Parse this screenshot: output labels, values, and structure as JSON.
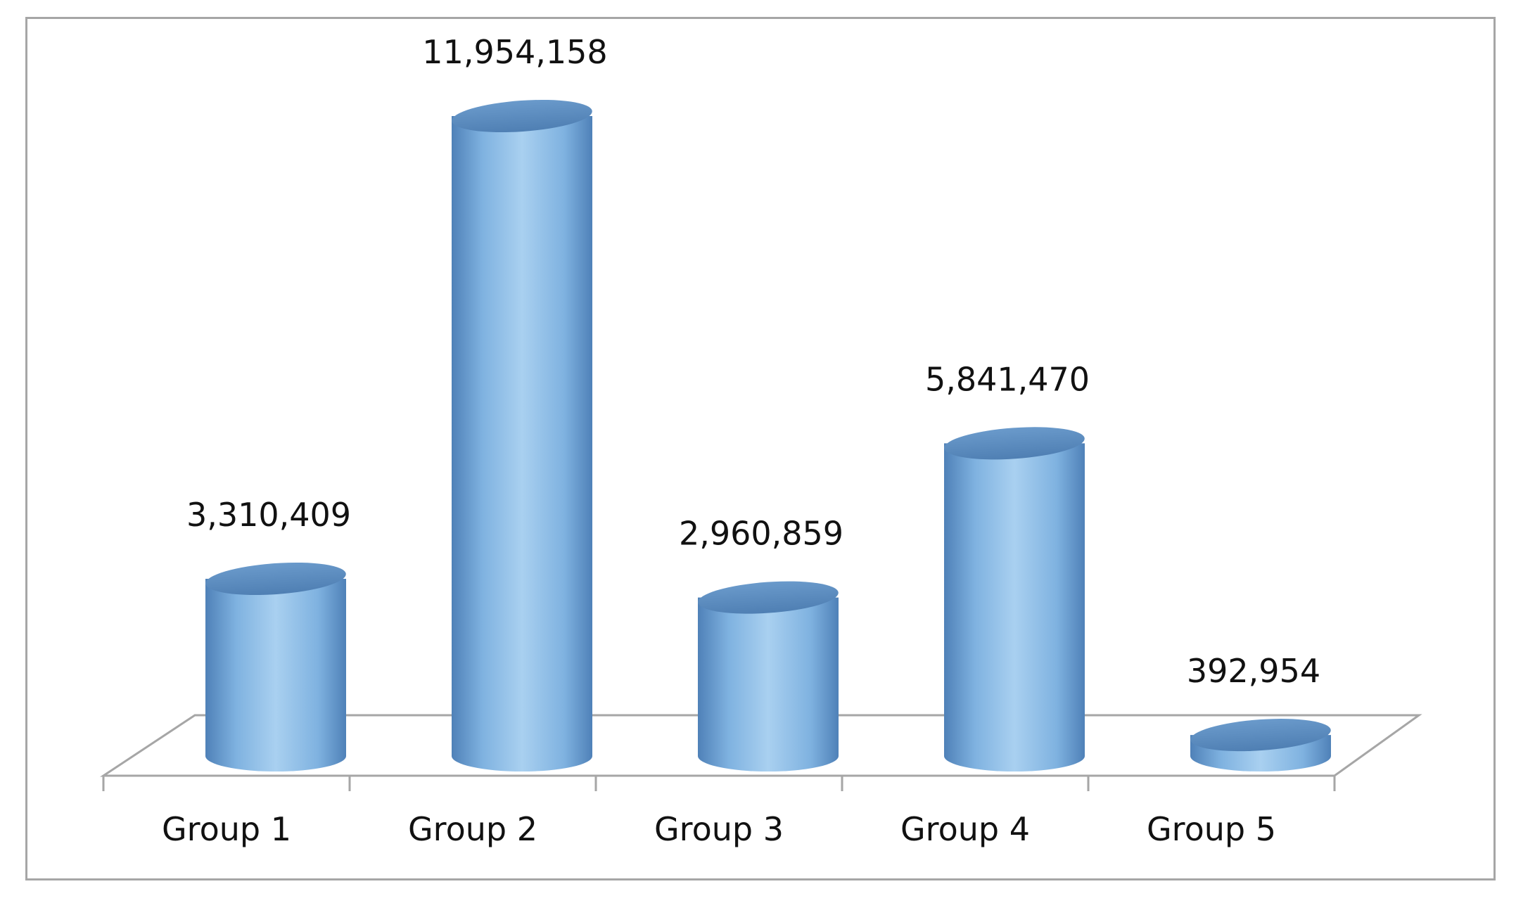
{
  "chart_data": {
    "type": "bar",
    "style": "3d-cylinder",
    "categories": [
      "Group 1",
      "Group 2",
      "Group 3",
      "Group 4",
      "Group 5"
    ],
    "values": [
      3310409,
      11954158,
      2960859,
      5841470,
      392954
    ],
    "data_labels": [
      "3,310,409",
      "11,954,158",
      "2,960,859",
      "5,841,470",
      "392,954"
    ],
    "title": "",
    "xlabel": "",
    "ylabel": "",
    "grid": false,
    "legend": "none",
    "colors": {
      "bar_body": "#7fb2e0",
      "bar_light": "#a9d0f0",
      "bar_dark": "#4f81b8",
      "bar_top": "#5b8ec4",
      "floor_line": "#a6a6a6",
      "frame": "#a6a6a6",
      "text": "#111111"
    }
  }
}
